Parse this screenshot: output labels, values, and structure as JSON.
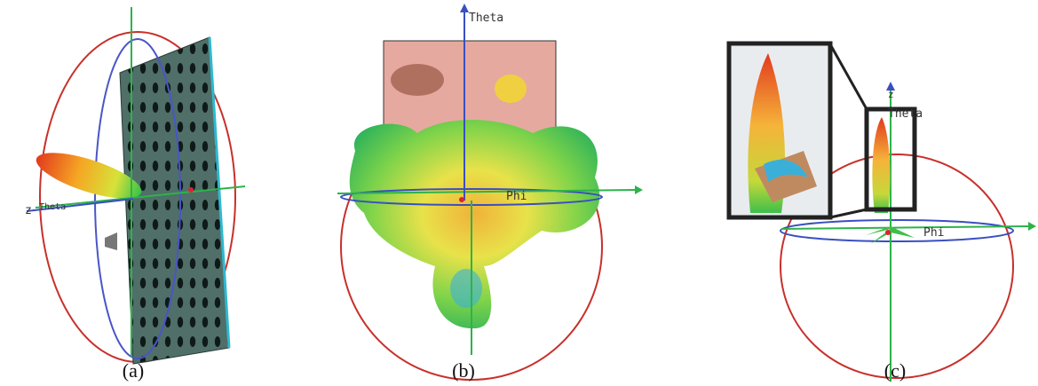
{
  "panels": [
    {
      "caption": "(a)",
      "axis_labels": [
        "z",
        "Theta"
      ]
    },
    {
      "caption": "(b)",
      "axis_labels": [
        "Theta",
        "Phi"
      ]
    },
    {
      "caption": "(c)",
      "axis_labels": [
        "z",
        "Theta",
        "Phi"
      ]
    }
  ]
}
